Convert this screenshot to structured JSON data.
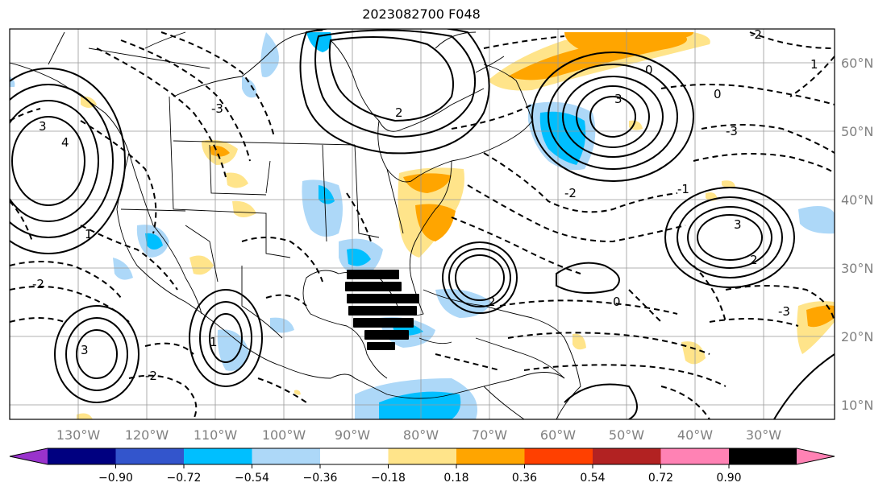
{
  "title": "2023082700 F048",
  "lon_ticks": [
    "130°W",
    "120°W",
    "110°W",
    "100°W",
    "90°W",
    "80°W",
    "70°W",
    "60°W",
    "50°W",
    "40°W",
    "30°W"
  ],
  "lat_ticks": [
    "60°N",
    "50°N",
    "40°N",
    "30°N",
    "20°N",
    "10°N"
  ],
  "colorbar": {
    "colors": [
      "#9933cc",
      "#000080",
      "#3355cc",
      "#00bfff",
      "#add8f8",
      "#ffffff",
      "#ffe48a",
      "#ffa500",
      "#ff4000",
      "#b22222",
      "#ff82b4"
    ],
    "ticks": [
      "−0.90",
      "−0.72",
      "−0.54",
      "−0.36",
      "−0.18",
      "0.18",
      "0.36",
      "0.54",
      "0.72",
      "0.90"
    ]
  },
  "contour_labels": [
    "3",
    "4",
    "2",
    "0",
    "1",
    "-3",
    "-2",
    "-1"
  ],
  "overlay": {
    "hatch_symbol": "■",
    "hatch_color": "#000000"
  }
}
